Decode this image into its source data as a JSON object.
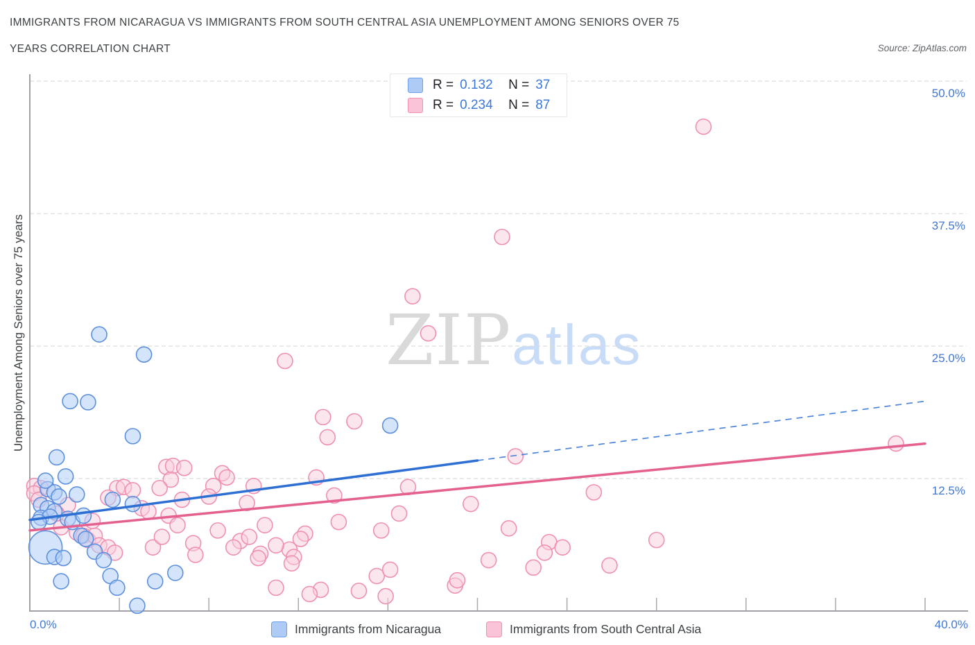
{
  "title": {
    "line1": "IMMIGRANTS FROM NICARAGUA VS IMMIGRANTS FROM SOUTH CENTRAL ASIA UNEMPLOYMENT AMONG SENIORS OVER 75",
    "line2": "YEARS CORRELATION CHART"
  },
  "source": "Source: ZipAtlas.com",
  "watermark": {
    "zip": "ZIP",
    "atlas": "atlas"
  },
  "legend_box": {
    "rows": [
      {
        "r_label": "R =",
        "r_value": "0.132",
        "n_label": "N =",
        "n_value": "37"
      },
      {
        "r_label": "R =",
        "r_value": "0.234",
        "n_label": "N =",
        "n_value": "87"
      }
    ]
  },
  "y_axis": {
    "title": "Unemployment Among Seniors over 75 years",
    "tick_labels": [
      "50.0%",
      "37.5%",
      "25.0%",
      "12.5%"
    ],
    "tick_values": [
      50,
      37.5,
      25,
      12.5
    ]
  },
  "x_axis": {
    "min_label": "0.0%",
    "max_label": "40.0%",
    "tick_values": [
      4,
      8,
      12,
      16,
      20,
      24,
      28,
      32,
      36,
      40
    ]
  },
  "bottom_legend": [
    {
      "label": "Immigrants from Nicaragua"
    },
    {
      "label": "Immigrants from South Central Asia"
    }
  ],
  "colors": {
    "grid": "#dcdcdc",
    "axis": "#a0a0a6",
    "tick": "#a8a8ae",
    "label_blue": "#4177d4",
    "title_gray": "#3c4043"
  },
  "chart_data": {
    "type": "scatter",
    "xlim": [
      0,
      40
    ],
    "ylim": [
      0,
      50
    ],
    "x_unit": "percent",
    "y_unit": "percent",
    "series": [
      {
        "name": "Immigrants from Nicaragua",
        "R": 0.132,
        "N": 37,
        "point_fill": "rgba(176,206,246,0.55)",
        "point_stroke": "#5c8fdd",
        "trend_color": "#2d6fd3",
        "trend_solid": [
          [
            0,
            8.6
          ],
          [
            20,
            14.2
          ]
        ],
        "trend_dashed": [
          [
            20,
            14.2
          ],
          [
            40,
            19.8
          ]
        ],
        "points": [
          [
            1.8,
            19.8
          ],
          [
            2.6,
            19.7
          ],
          [
            3.1,
            26.1
          ],
          [
            5.1,
            24.2
          ],
          [
            4.6,
            16.5
          ],
          [
            1.2,
            14.5
          ],
          [
            1.6,
            12.7
          ],
          [
            0.8,
            11.5
          ],
          [
            1.1,
            11.2
          ],
          [
            1.3,
            10.8
          ],
          [
            0.5,
            10.0
          ],
          [
            0.8,
            9.7
          ],
          [
            1.1,
            9.4
          ],
          [
            0.5,
            8.8
          ],
          [
            0.9,
            8.9
          ],
          [
            0.4,
            8.4
          ],
          [
            1.7,
            8.7
          ],
          [
            1.9,
            8.4
          ],
          [
            0.7,
            6.0,
            24
          ],
          [
            3.7,
            10.5
          ],
          [
            4.6,
            10.1
          ],
          [
            2.3,
            7.1
          ],
          [
            2.5,
            6.8
          ],
          [
            1.1,
            5.1
          ],
          [
            1.5,
            5.0
          ],
          [
            2.9,
            5.6
          ],
          [
            3.3,
            4.8
          ],
          [
            1.4,
            2.8
          ],
          [
            3.6,
            3.3
          ],
          [
            3.9,
            2.2
          ],
          [
            4.8,
            0.5
          ],
          [
            16.1,
            17.5
          ],
          [
            5.6,
            2.8
          ],
          [
            6.5,
            3.6
          ],
          [
            0.7,
            12.3
          ],
          [
            2.1,
            11.0
          ],
          [
            2.4,
            9.0
          ]
        ]
      },
      {
        "name": "Immigrants from South Central Asia",
        "R": 0.234,
        "N": 87,
        "point_fill": "rgba(250,205,222,0.5)",
        "point_stroke": "#ef8fb2",
        "trend_color": "#e4608f",
        "trend_solid": [
          [
            0,
            7.6
          ],
          [
            40,
            15.8
          ]
        ],
        "points": [
          [
            0.2,
            11.8
          ],
          [
            0.5,
            11.6
          ],
          [
            0.2,
            11.1
          ],
          [
            1.7,
            10.0
          ],
          [
            1.4,
            7.9
          ],
          [
            2.1,
            7.4
          ],
          [
            2.4,
            7.1
          ],
          [
            2.6,
            6.7
          ],
          [
            2.9,
            7.1
          ],
          [
            3.1,
            6.2
          ],
          [
            3.5,
            6.0
          ],
          [
            3.9,
            11.6
          ],
          [
            4.2,
            11.7
          ],
          [
            4.6,
            11.4
          ],
          [
            3.5,
            10.7
          ],
          [
            6.1,
            13.6
          ],
          [
            6.4,
            13.7
          ],
          [
            6.9,
            13.5
          ],
          [
            6.3,
            12.4
          ],
          [
            5.8,
            11.6
          ],
          [
            6.2,
            9.0
          ],
          [
            6.6,
            8.1
          ],
          [
            5.0,
            9.7
          ],
          [
            5.3,
            9.4
          ],
          [
            5.5,
            6.0
          ],
          [
            7.3,
            6.4
          ],
          [
            7.4,
            5.3
          ],
          [
            8.6,
            13.0
          ],
          [
            8.8,
            12.6
          ],
          [
            8.2,
            11.8
          ],
          [
            8.4,
            7.6
          ],
          [
            9.4,
            6.6
          ],
          [
            9.1,
            6.0
          ],
          [
            10.0,
            11.8
          ],
          [
            9.7,
            10.2
          ],
          [
            10.5,
            8.1
          ],
          [
            10.3,
            5.4
          ],
          [
            10.2,
            5.0
          ],
          [
            11.6,
            5.8
          ],
          [
            11.8,
            5.1
          ],
          [
            11.7,
            4.5
          ],
          [
            12.3,
            7.3
          ],
          [
            12.1,
            6.8
          ],
          [
            12.8,
            12.6
          ],
          [
            13.6,
            10.9
          ],
          [
            13.8,
            8.4
          ],
          [
            13.1,
            18.3
          ],
          [
            13.3,
            16.4
          ],
          [
            14.5,
            17.9
          ],
          [
            17.1,
            29.7
          ],
          [
            17.8,
            26.2
          ],
          [
            11.4,
            23.6
          ],
          [
            16.9,
            11.7
          ],
          [
            16.5,
            9.2
          ],
          [
            15.7,
            7.6
          ],
          [
            14.7,
            1.9
          ],
          [
            15.5,
            3.3
          ],
          [
            16.1,
            3.9
          ],
          [
            15.9,
            1.4
          ],
          [
            13.0,
            2.0
          ],
          [
            12.5,
            1.6
          ],
          [
            11.0,
            2.2
          ],
          [
            19.0,
            2.4
          ],
          [
            21.1,
            35.3
          ],
          [
            30.1,
            45.7
          ],
          [
            21.7,
            14.6
          ],
          [
            25.2,
            11.2
          ],
          [
            19.7,
            10.1
          ],
          [
            21.4,
            7.8
          ],
          [
            23.2,
            6.5
          ],
          [
            23.0,
            5.5
          ],
          [
            23.8,
            6.0
          ],
          [
            20.5,
            4.8
          ],
          [
            22.5,
            4.1
          ],
          [
            25.9,
            4.3
          ],
          [
            28.0,
            6.7
          ],
          [
            19.1,
            2.9
          ],
          [
            38.7,
            15.8
          ],
          [
            0.4,
            10.5
          ],
          [
            1.2,
            9.2
          ],
          [
            2.8,
            8.5
          ],
          [
            3.8,
            5.5
          ],
          [
            5.9,
            7.0
          ],
          [
            6.8,
            10.5
          ],
          [
            8.0,
            10.8
          ],
          [
            9.8,
            7.0
          ],
          [
            11.0,
            6.2
          ]
        ]
      }
    ]
  }
}
